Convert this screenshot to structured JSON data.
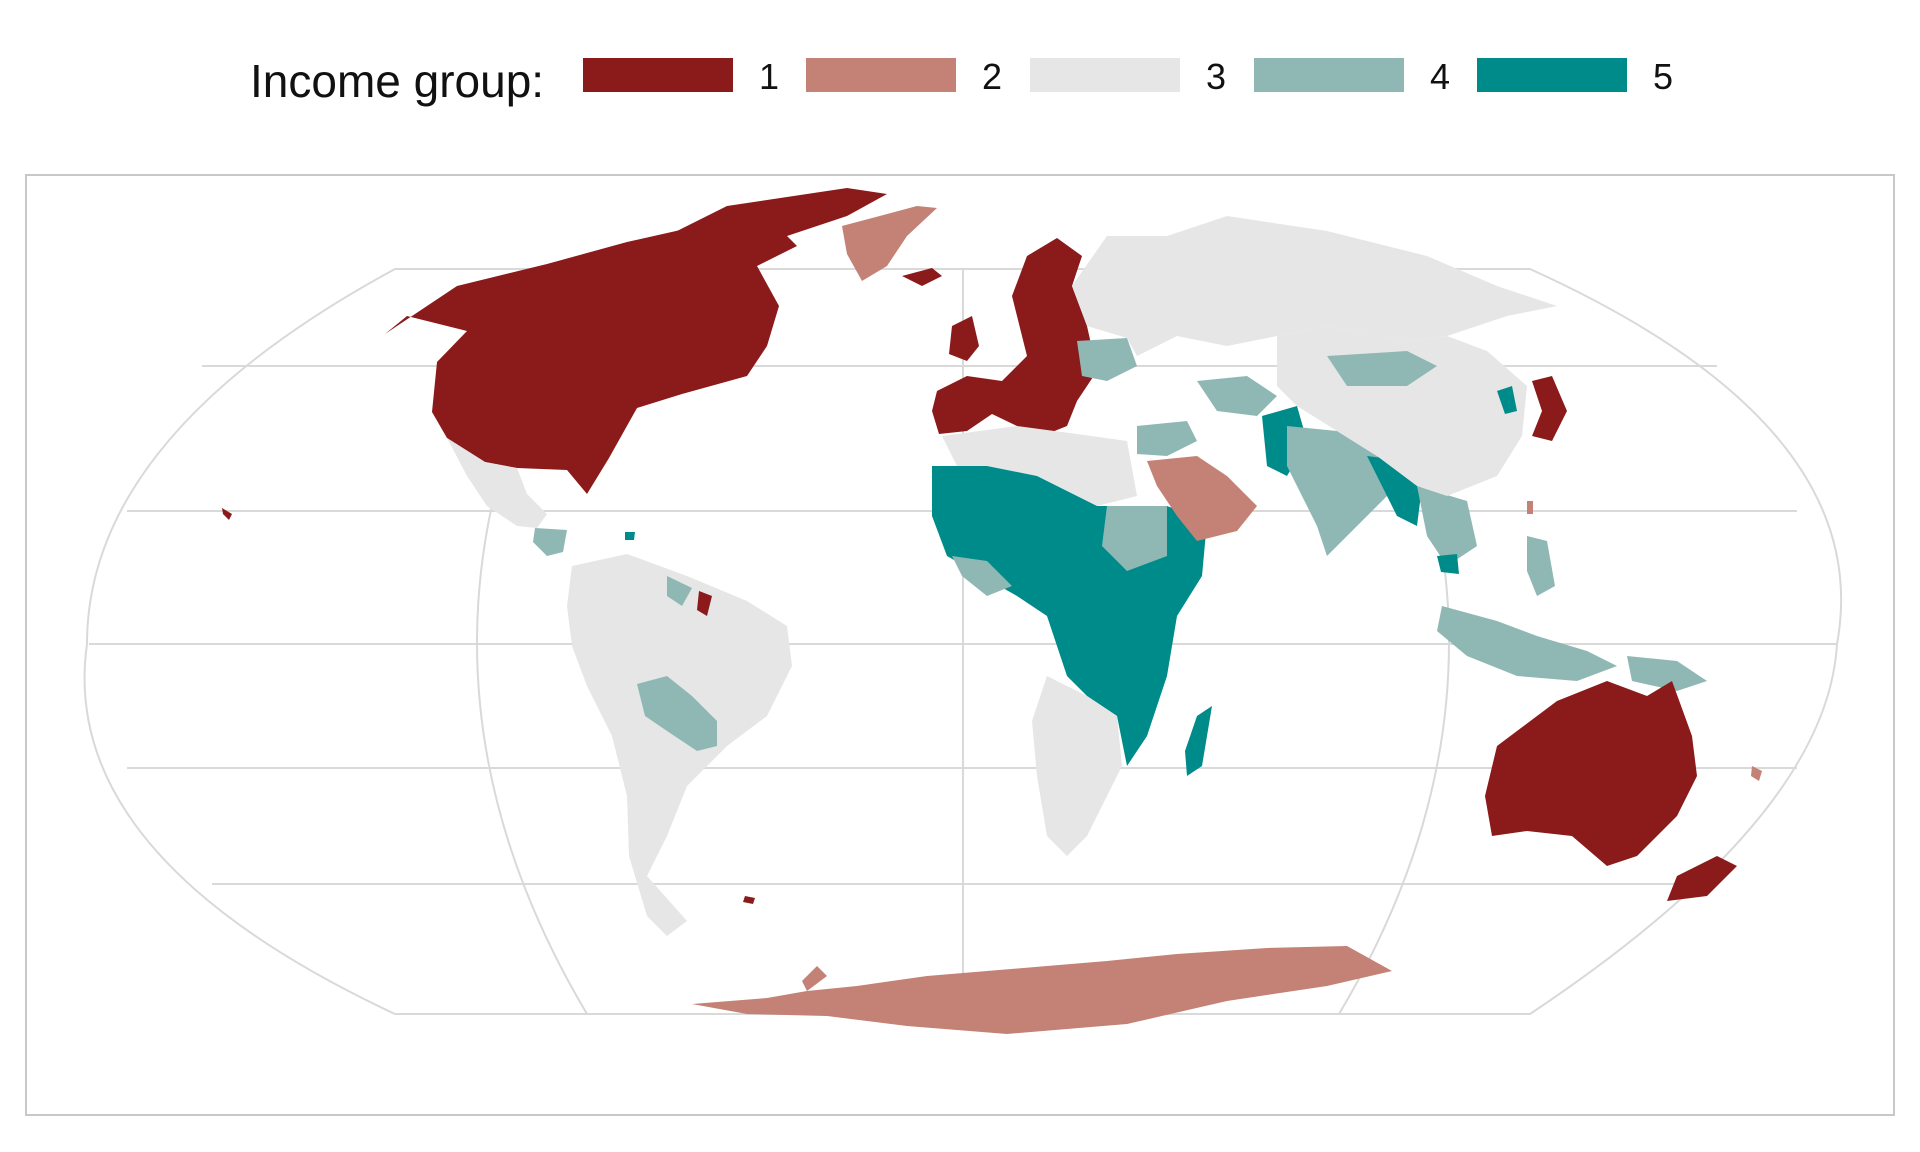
{
  "legend": {
    "title": "Income group:",
    "items": [
      {
        "label": "1",
        "color": "#8b1a1a"
      },
      {
        "label": "2",
        "color": "#c48175"
      },
      {
        "label": "3",
        "color": "#e6e6e6"
      },
      {
        "label": "4",
        "color": "#8fb8b5"
      },
      {
        "label": "5",
        "color": "#008b8b"
      }
    ]
  },
  "map": {
    "projection": "Winkel-tripel-like world map",
    "graticule": true,
    "regions": [
      {
        "name": "North America (USA, Canada)",
        "group": 1
      },
      {
        "name": "Greenland",
        "group": 2
      },
      {
        "name": "Western & Northern Europe",
        "group": 1
      },
      {
        "name": "Russia & Northern Asia",
        "group": 3
      },
      {
        "name": "Mexico & Central America",
        "group": 3
      },
      {
        "name": "South America",
        "group": 3
      },
      {
        "name": "Bolivia",
        "group": 4
      },
      {
        "name": "North Africa",
        "group": 3
      },
      {
        "name": "Sahel & Central Africa",
        "group": 5
      },
      {
        "name": "Southern Africa",
        "group": 3
      },
      {
        "name": "Arabian Peninsula",
        "group": 2
      },
      {
        "name": "Middle East",
        "group": 4
      },
      {
        "name": "South Asia (India)",
        "group": 4
      },
      {
        "name": "Afghanistan & Pakistan",
        "group": 5
      },
      {
        "name": "Myanmar",
        "group": 5
      },
      {
        "name": "China",
        "group": 3
      },
      {
        "name": "Mongolia",
        "group": 4
      },
      {
        "name": "Japan & South Korea",
        "group": 1
      },
      {
        "name": "North Korea",
        "group": 5
      },
      {
        "name": "Southeast Asia (Indonesia, Philippines)",
        "group": 4
      },
      {
        "name": "Papua New Guinea",
        "group": 4
      },
      {
        "name": "Australia & New Zealand",
        "group": 1
      },
      {
        "name": "Madagascar",
        "group": 5
      },
      {
        "name": "Antarctica",
        "group": 2
      }
    ]
  }
}
